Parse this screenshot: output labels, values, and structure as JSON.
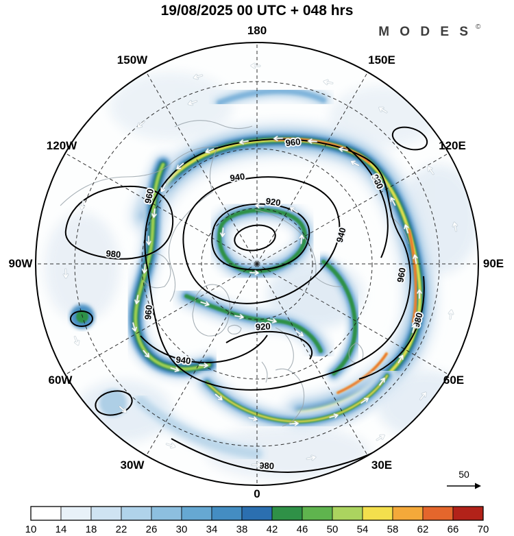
{
  "header": {
    "title": "19/08/2025  00 UTC  + 048 hrs"
  },
  "brand": {
    "name": "M O D E S",
    "mark": "©"
  },
  "map": {
    "longitude_labels": [
      "180",
      "150W",
      "150E",
      "120W",
      "120E",
      "90W",
      "90E",
      "60W",
      "60E",
      "30W",
      "30E",
      "0"
    ],
    "contour_labels": [
      "960",
      "940",
      "920",
      "980",
      "940",
      "960",
      "980",
      "960",
      "940",
      "920",
      "960",
      "980",
      "980"
    ],
    "wind_reference": {
      "value": "50"
    }
  },
  "colorbar": {
    "ticks": [
      "10",
      "14",
      "18",
      "22",
      "26",
      "30",
      "34",
      "38",
      "42",
      "46",
      "50",
      "54",
      "58",
      "62",
      "66",
      "70"
    ],
    "colors": [
      "#ffffff",
      "#e8f1f8",
      "#cfe3f2",
      "#b0d3ea",
      "#8dbfdf",
      "#66a8d2",
      "#448dc2",
      "#2b6fb0",
      "#2f9147",
      "#5fb44e",
      "#abd45f",
      "#f3df4d",
      "#f4a93a",
      "#e4662c",
      "#b22219"
    ]
  },
  "chart_data": {
    "type": "heatmap",
    "title": "19/08/2025  00 UTC  + 048 hrs",
    "colorbar_boundaries": [
      10,
      14,
      18,
      22,
      26,
      30,
      34,
      38,
      42,
      46,
      50,
      54,
      58,
      62,
      66,
      70
    ],
    "contour_values_dam": [
      920,
      940,
      960,
      980
    ],
    "wind_reference_value": 50,
    "legend_position": "bottom"
  }
}
